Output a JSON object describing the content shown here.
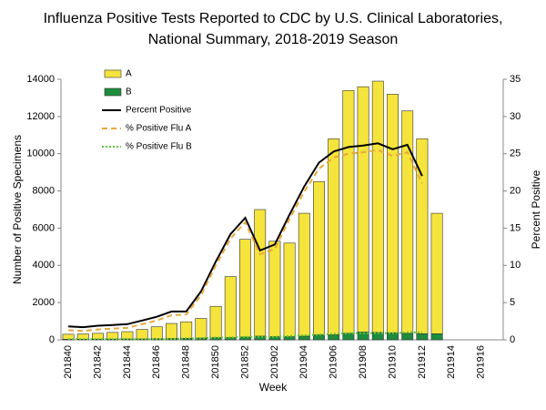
{
  "chart_data": {
    "type": "bar",
    "title": [
      "Influenza Positive Tests Reported to CDC by U.S. Clinical Laboratories,",
      "National Summary, 2018-2019 Season"
    ],
    "x_label": "Week",
    "y_label": "Number of Positive Specimens",
    "y2_label": "Percent Positive",
    "categories": [
      "201840",
      null,
      "201842",
      null,
      "201844",
      null,
      "201846",
      null,
      "201848",
      null,
      "201850",
      null,
      "201852",
      null,
      "201902",
      null,
      "201904",
      null,
      "201906",
      null,
      "201908",
      null,
      "201910",
      null,
      "201912",
      null,
      "201914",
      null,
      "201916",
      null
    ],
    "series": [
      {
        "name": "A",
        "type": "bar",
        "color": "#f5e43c",
        "values": [
          270,
          290,
          310,
          360,
          390,
          510,
          640,
          810,
          890,
          1050,
          1680,
          3280,
          5250,
          6800,
          5130,
          5030,
          6600,
          8230,
          10530,
          13050,
          13180,
          13500,
          12820,
          11950,
          10470,
          6470,
          null,
          null,
          null,
          null
        ]
      },
      {
        "name": "B",
        "type": "bar",
        "color": "#1e8c3c",
        "values": [
          30,
          30,
          40,
          40,
          50,
          50,
          60,
          70,
          80,
          100,
          120,
          120,
          150,
          200,
          170,
          170,
          200,
          270,
          270,
          350,
          420,
          400,
          380,
          350,
          330,
          330,
          null,
          null,
          null,
          null
        ]
      },
      {
        "name": "Percent Positive",
        "type": "line",
        "axis": "y2",
        "color": "#000000",
        "dash": "",
        "values": [
          1.8,
          1.7,
          1.9,
          2.0,
          2.1,
          2.6,
          3.1,
          3.8,
          3.8,
          6.5,
          10.5,
          14.2,
          16.4,
          12.0,
          12.8,
          16.8,
          20.6,
          23.8,
          25.3,
          25.9,
          26.1,
          26.4,
          25.6,
          26.2,
          22.0,
          null,
          null,
          null,
          null,
          null
        ]
      },
      {
        "name": "% Positive Flu A",
        "type": "line",
        "axis": "y2",
        "color": "#e8a83a",
        "dash": "6 4",
        "values": [
          1.3,
          1.2,
          1.4,
          1.5,
          1.6,
          2.1,
          2.6,
          3.3,
          3.4,
          6.0,
          10.0,
          13.6,
          15.8,
          11.5,
          12.2,
          16.2,
          19.9,
          23.0,
          24.5,
          25.0,
          25.2,
          25.5,
          24.7,
          25.2,
          21.0,
          null,
          null,
          null,
          null,
          null
        ]
      },
      {
        "name": "% Positive Flu B",
        "type": "line",
        "axis": "y2",
        "color": "#5cc83a",
        "dash": "2 2",
        "values": [
          0.1,
          0.1,
          0.1,
          0.1,
          0.1,
          0.1,
          0.1,
          0.1,
          0.2,
          0.2,
          0.3,
          0.3,
          0.4,
          0.4,
          0.4,
          0.5,
          0.6,
          0.7,
          0.8,
          0.9,
          0.9,
          0.9,
          0.9,
          1.0,
          1.0,
          null,
          null,
          null,
          null,
          null
        ]
      }
    ],
    "ylim": [
      0,
      14000
    ],
    "yticks": [
      0,
      2000,
      4000,
      6000,
      8000,
      10000,
      12000,
      14000
    ],
    "y2lim": [
      0,
      35
    ],
    "y2ticks": [
      0,
      5,
      10,
      15,
      20,
      25,
      30,
      35
    ],
    "legend": "top-left"
  }
}
